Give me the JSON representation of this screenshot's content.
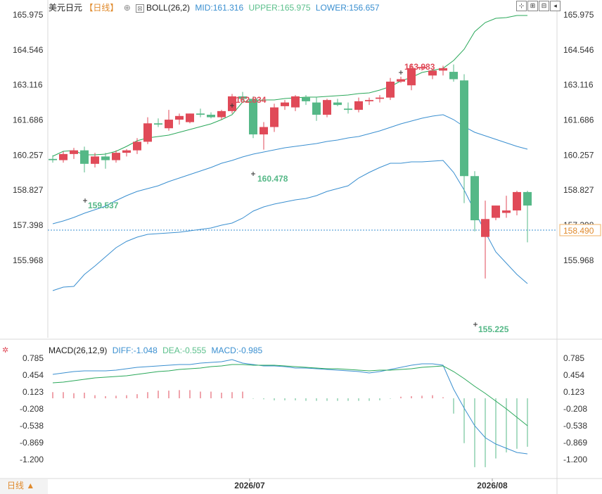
{
  "header": {
    "symbol": "美元日元",
    "period": "【日线】",
    "boll_name": "BOLL(26,2)",
    "mid": "MID:161.316",
    "upper": "UPPER:165.975",
    "lower": "LOWER:156.657"
  },
  "macd_header": {
    "name": "MACD(26,12,9)",
    "diff": "DIFF:-1.048",
    "dea": "DEA:-0.555",
    "macd": "MACD:-0.985"
  },
  "bottom_tab": "日线 ▲",
  "toolbar": {
    "icons": [
      "crosshair-icon",
      "zoom-in-icon",
      "zoom-out-icon",
      "step-back-icon"
    ]
  },
  "chart_data": [
    {
      "type": "candlestick",
      "yaxis": {
        "ticks": [
          "165.975",
          "164.546",
          "163.116",
          "161.686",
          "160.257",
          "158.827",
          "157.398",
          "155.968"
        ]
      },
      "xaxis": {
        "ticks": [
          "2026/07",
          "2026/08"
        ]
      },
      "last_price": "158.490",
      "annotations": [
        "163.983",
        "162.834",
        "160.478",
        "159.537",
        "155.225"
      ],
      "colors": {
        "up": "#e04a58",
        "down": "#55b887",
        "mid": "#3a8fd0",
        "band": "#2aa85a"
      }
    },
    {
      "type": "bar",
      "yaxis": {
        "ticks": [
          "0.785",
          "0.454",
          "0.123",
          "-0.208",
          "-0.538",
          "-0.869",
          "-1.200"
        ]
      }
    }
  ]
}
